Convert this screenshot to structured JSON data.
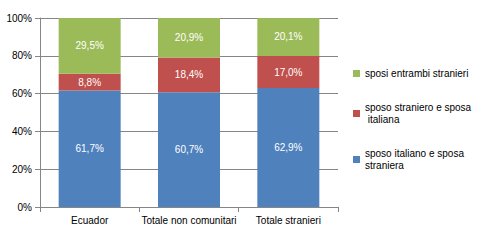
{
  "chart_data": {
    "type": "bar",
    "stacked": true,
    "data_labels": true,
    "grid": true,
    "legend": "right",
    "categories": [
      "Ecuador",
      "Totale non comunitari",
      "Totale stranieri"
    ],
    "series": [
      {
        "name": "sposo italiano e sposa straniera",
        "color": "#4F81BD",
        "values": [
          61.7,
          60.7,
          62.9
        ],
        "value_labels": [
          "61,7%",
          "60,7%",
          "62,9%"
        ]
      },
      {
        "name": "sposo straniero e sposa italiana",
        "color": "#C0504D",
        "values": [
          8.8,
          18.4,
          17.0
        ],
        "value_labels": [
          "8,8%",
          "18,4%",
          "17,0%"
        ]
      },
      {
        "name": "sposi entrambi stranieri",
        "color": "#9BBB59",
        "values": [
          29.5,
          20.9,
          20.1
        ],
        "value_labels": [
          "29,5%",
          "20,9%",
          "20,1%"
        ]
      }
    ],
    "ylim": [
      0,
      100
    ],
    "yticks": [
      {
        "value": 0,
        "label": "0%"
      },
      {
        "value": 20,
        "label": "20%"
      },
      {
        "value": 40,
        "label": "40%"
      },
      {
        "value": 60,
        "label": "60%"
      },
      {
        "value": 80,
        "label": "80%"
      },
      {
        "value": 100,
        "label": "100%"
      }
    ]
  }
}
